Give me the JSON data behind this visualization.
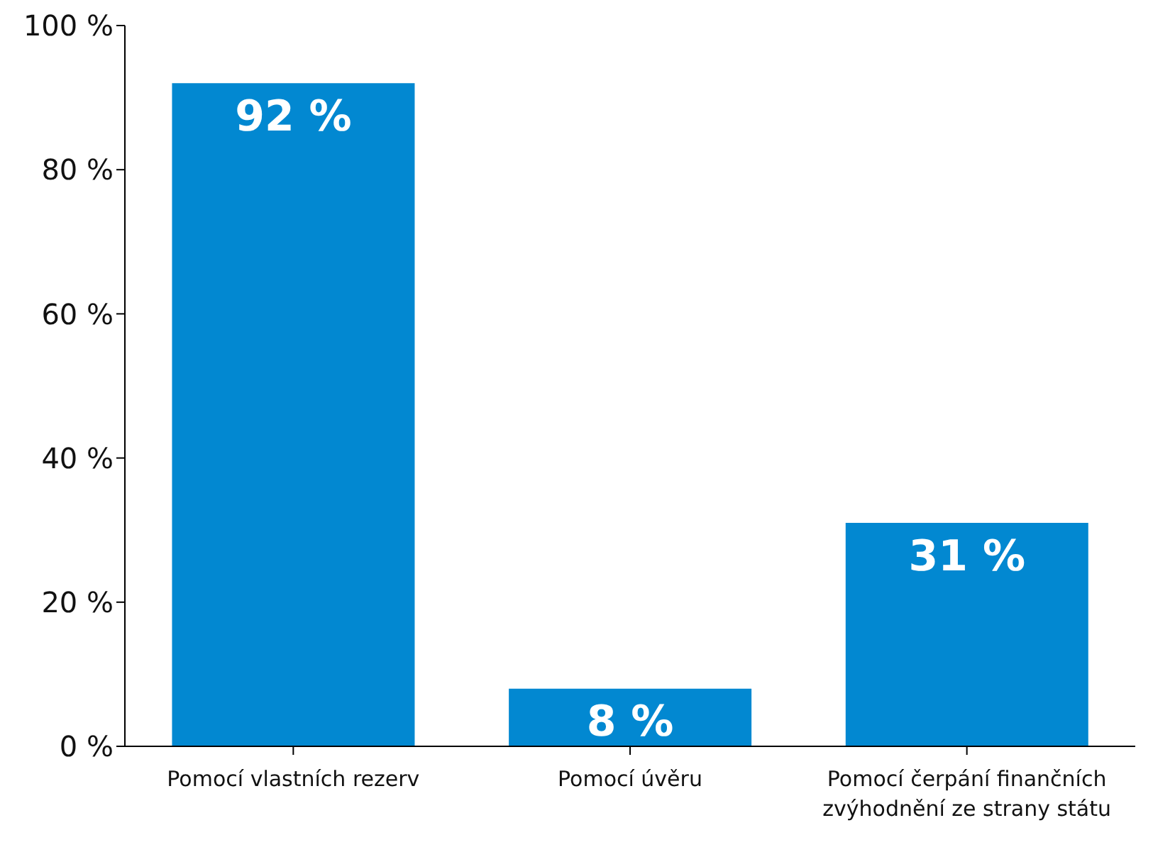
{
  "chart_data": {
    "type": "bar",
    "categories": [
      "Pomocí vlastních rezerv",
      "Pomocí úvěru",
      "Pomocí čerpání finančních zvýhodnění ze strany státu"
    ],
    "values": [
      92,
      8,
      31
    ],
    "color": "#0288d1",
    "value_labels": [
      "92 %",
      "8 %",
      "31 %"
    ],
    "ylim": [
      0,
      100
    ],
    "yticks": [
      {
        "value": 0,
        "label": "0 %"
      },
      {
        "value": 20,
        "label": "20 %"
      },
      {
        "value": 40,
        "label": "40 %"
      },
      {
        "value": 60,
        "label": "60 %"
      },
      {
        "value": 80,
        "label": "80 %"
      },
      {
        "value": 100,
        "label": "100 %"
      }
    ],
    "grid": false,
    "legend": false
  }
}
